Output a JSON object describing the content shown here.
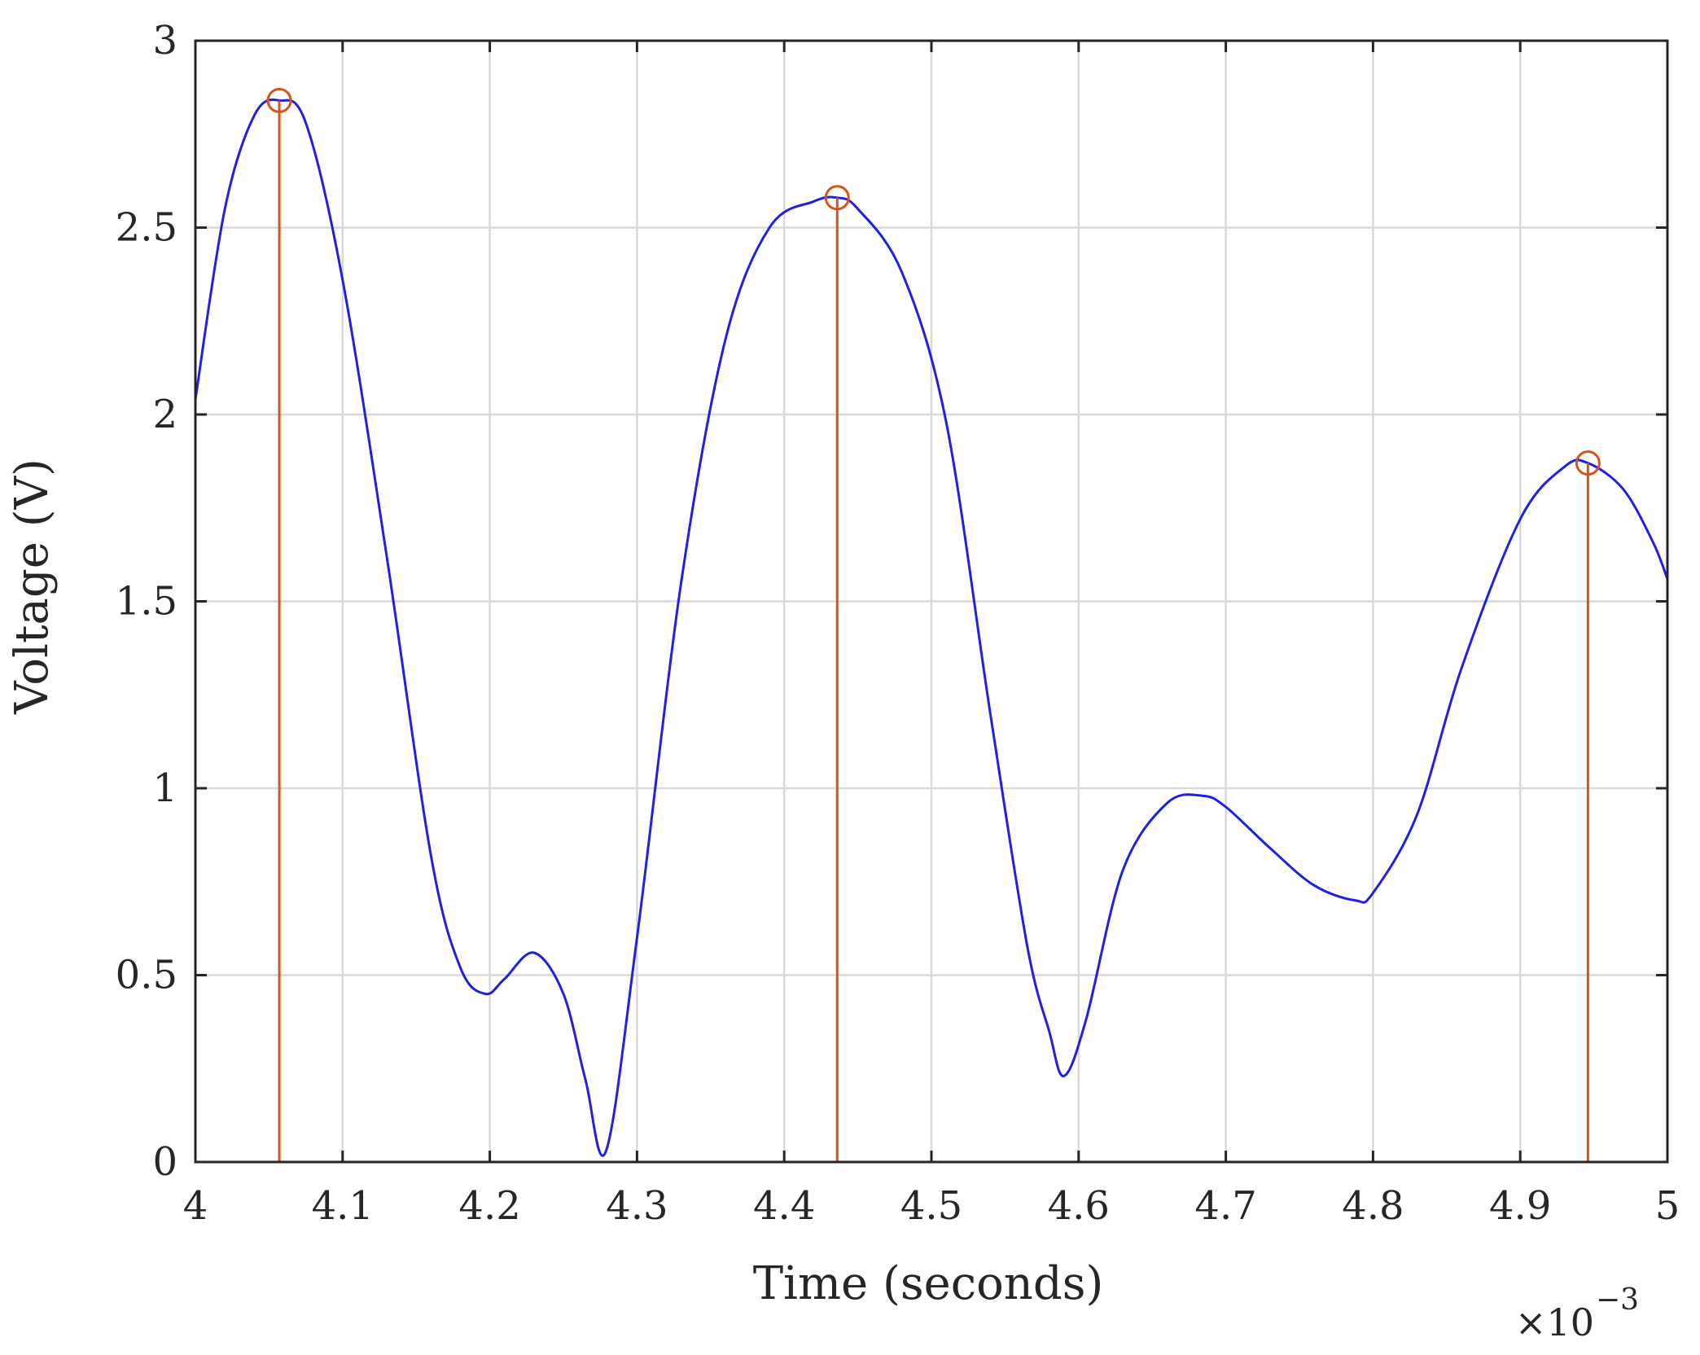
{
  "chart_data": {
    "type": "line",
    "title": "",
    "xlabel": "Time (seconds)",
    "ylabel": "Voltage (V)",
    "x_exponent_label": {
      "base": "×10",
      "power": "−3"
    },
    "xlim": [
      4.0,
      5.0
    ],
    "ylim": [
      0,
      3
    ],
    "x_ticks": [
      4.0,
      4.1,
      4.2,
      4.3,
      4.4,
      4.5,
      4.6,
      4.7,
      4.8,
      4.9,
      5.0
    ],
    "x_tick_labels": [
      "4",
      "4.1",
      "4.2",
      "4.3",
      "4.4",
      "4.5",
      "4.6",
      "4.7",
      "4.8",
      "4.9",
      "5"
    ],
    "y_ticks": [
      0,
      0.5,
      1,
      1.5,
      2,
      2.5,
      3
    ],
    "y_tick_labels": [
      "0",
      "0.5",
      "1",
      "1.5",
      "2",
      "2.5",
      "3"
    ],
    "grid": true,
    "colors": {
      "signal": "#1f1fe6",
      "peaks": "#d95319",
      "grid": "#d9d9d9",
      "axis": "#262626"
    },
    "series": [
      {
        "style": "line",
        "x": [
          4.0,
          4.02,
          4.04,
          4.057,
          4.075,
          4.1,
          4.13,
          4.16,
          4.18,
          4.197,
          4.21,
          4.23,
          4.25,
          4.265,
          4.279,
          4.3,
          4.33,
          4.36,
          4.39,
          4.42,
          4.436,
          4.45,
          4.48,
          4.51,
          4.54,
          4.565,
          4.58,
          4.59,
          4.605,
          4.63,
          4.66,
          4.684,
          4.7,
          4.73,
          4.76,
          4.788,
          4.8,
          4.83,
          4.86,
          4.9,
          4.93,
          4.946,
          4.97,
          4.99,
          5.0
        ],
        "y": [
          2.04,
          2.55,
          2.8,
          2.84,
          2.78,
          2.36,
          1.62,
          0.82,
          0.52,
          0.45,
          0.49,
          0.56,
          0.45,
          0.22,
          0.03,
          0.6,
          1.55,
          2.2,
          2.5,
          2.57,
          2.58,
          2.55,
          2.38,
          1.98,
          1.2,
          0.58,
          0.35,
          0.23,
          0.38,
          0.78,
          0.96,
          0.98,
          0.95,
          0.84,
          0.74,
          0.7,
          0.72,
          0.93,
          1.32,
          1.72,
          1.86,
          1.87,
          1.8,
          1.66,
          1.56
        ]
      },
      {
        "style": "stem",
        "x": [
          4.057,
          4.436,
          4.946
        ],
        "y": [
          2.84,
          2.58,
          1.87
        ]
      }
    ]
  }
}
